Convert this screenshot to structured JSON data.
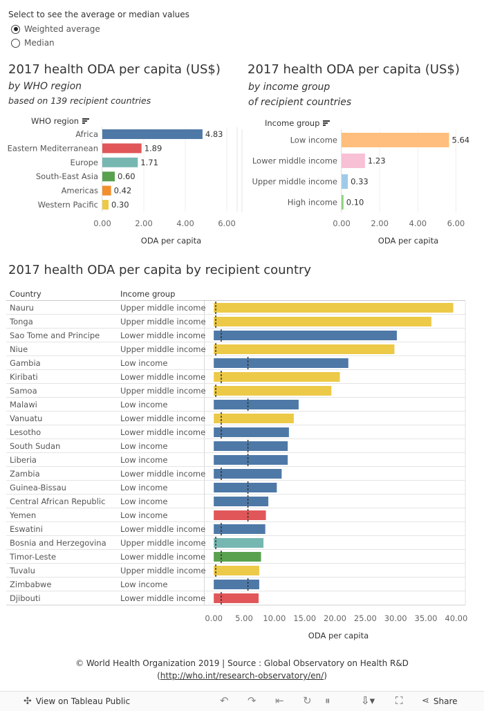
{
  "controls": {
    "title": "Select to see the average or median values",
    "options": [
      {
        "label": "Weighted average",
        "selected": true
      },
      {
        "label": "Median",
        "selected": false
      }
    ]
  },
  "chart_data": [
    {
      "type": "bar",
      "orientation": "horizontal",
      "title": "2017 health ODA per capita (US$)",
      "subtitle": "by WHO region",
      "subtitle2": "based on 139 recipient countries",
      "column_header": "WHO region",
      "xlabel": "ODA per capita",
      "xlim": [
        0,
        6.5
      ],
      "xticks": [
        "0.00",
        "2.00",
        "4.00",
        "6.00"
      ],
      "categories": [
        "Africa",
        "Eastern Mediterranean",
        "Europe",
        "South-East Asia",
        "Americas",
        "Western Pacific"
      ],
      "values": [
        4.83,
        1.89,
        1.71,
        0.6,
        0.42,
        0.3
      ],
      "labels": [
        "4.83",
        "1.89",
        "1.71",
        "0.60",
        "0.42",
        "0.30"
      ],
      "colors": [
        "#4e79a7",
        "#e15759",
        "#76b7b2",
        "#59a14f",
        "#f28e2b",
        "#edc948"
      ]
    },
    {
      "type": "bar",
      "orientation": "horizontal",
      "title": "2017 health ODA per capita (US$)",
      "subtitle": "by income group",
      "subtitle2": "of recipient countries",
      "column_header": "Income group",
      "xlabel": "ODA per capita",
      "xlim": [
        0,
        7.0
      ],
      "xticks": [
        "0.00",
        "2.00",
        "4.00",
        "6.00"
      ],
      "categories": [
        "Low income",
        "Lower middle income",
        "Upper middle income",
        "High income"
      ],
      "values": [
        5.64,
        1.23,
        0.33,
        0.1
      ],
      "labels": [
        "5.64",
        "1.23",
        "0.33",
        "0.10"
      ],
      "colors": [
        "#ffbe7d",
        "#f8c0d4",
        "#a0cbe8",
        "#8cd17d"
      ]
    },
    {
      "type": "bar",
      "orientation": "horizontal",
      "title": "2017 health ODA per capita by recipient country",
      "column_headers": [
        "Country",
        "Income group"
      ],
      "xlabel": "ODA per capita",
      "xlim": [
        -1.5,
        41.5
      ],
      "xticks": [
        "0.00",
        "5.00",
        "10.00",
        "15.00",
        "20.00",
        "25.00",
        "30.00",
        "35.00",
        "40.00"
      ],
      "rows": [
        {
          "country": "Nauru",
          "income": "Upper middle income",
          "value": 39.5,
          "color": "#edc948",
          "ref": 0.33
        },
        {
          "country": "Tonga",
          "income": "Upper middle income",
          "value": 35.9,
          "color": "#edc948",
          "ref": 0.33
        },
        {
          "country": "Sao Tome and Principe",
          "income": "Lower middle income",
          "value": 30.2,
          "color": "#4e79a7",
          "ref": 1.23
        },
        {
          "country": "Niue",
          "income": "Upper middle income",
          "value": 29.8,
          "color": "#edc948",
          "ref": 0.33
        },
        {
          "country": "Gambia",
          "income": "Low income",
          "value": 22.2,
          "color": "#4e79a7",
          "ref": 5.64
        },
        {
          "country": "Kiribati",
          "income": "Lower middle income",
          "value": 20.8,
          "color": "#edc948",
          "ref": 1.23
        },
        {
          "country": "Samoa",
          "income": "Upper middle income",
          "value": 19.4,
          "color": "#edc948",
          "ref": 0.33
        },
        {
          "country": "Malawi",
          "income": "Low income",
          "value": 14.0,
          "color": "#4e79a7",
          "ref": 5.64
        },
        {
          "country": "Vanuatu",
          "income": "Lower middle income",
          "value": 13.2,
          "color": "#edc948",
          "ref": 1.23
        },
        {
          "country": "Lesotho",
          "income": "Lower middle income",
          "value": 12.4,
          "color": "#4e79a7",
          "ref": 1.23
        },
        {
          "country": "South Sudan",
          "income": "Low income",
          "value": 12.2,
          "color": "#4e79a7",
          "ref": 5.64
        },
        {
          "country": "Liberia",
          "income": "Low income",
          "value": 12.2,
          "color": "#4e79a7",
          "ref": 5.64
        },
        {
          "country": "Zambia",
          "income": "Lower middle income",
          "value": 11.2,
          "color": "#4e79a7",
          "ref": 1.23
        },
        {
          "country": "Guinea-Bissau",
          "income": "Low income",
          "value": 10.4,
          "color": "#4e79a7",
          "ref": 5.64
        },
        {
          "country": "Central African Republic",
          "income": "Low income",
          "value": 9.0,
          "color": "#4e79a7",
          "ref": 5.64
        },
        {
          "country": "Yemen",
          "income": "Low income",
          "value": 8.6,
          "color": "#e15759",
          "ref": 5.64
        },
        {
          "country": "Eswatini",
          "income": "Lower middle income",
          "value": 8.5,
          "color": "#4e79a7",
          "ref": 1.23
        },
        {
          "country": "Bosnia and Herzegovina",
          "income": "Upper middle income",
          "value": 8.2,
          "color": "#76b7b2",
          "ref": 0.33
        },
        {
          "country": "Timor-Leste",
          "income": "Lower middle income",
          "value": 7.8,
          "color": "#59a14f",
          "ref": 1.23
        },
        {
          "country": "Tuvalu",
          "income": "Upper middle income",
          "value": 7.5,
          "color": "#edc948",
          "ref": 0.33
        },
        {
          "country": "Zimbabwe",
          "income": "Low income",
          "value": 7.5,
          "color": "#4e79a7",
          "ref": 5.64
        },
        {
          "country": "Djibouti",
          "income": "Lower middle income",
          "value": 7.4,
          "color": "#e15759",
          "ref": 1.23
        }
      ]
    }
  ],
  "footer": {
    "line1": "© World Health Organization 2019 | Source : Global Observatory on Health R&D",
    "link": "http://who.int/research-observatory/en/"
  },
  "toolbar": {
    "view_label": "View on Tableau Public",
    "share_label": "Share",
    "icons": [
      "tableau-icon",
      "undo-icon",
      "redo-icon",
      "revert-icon",
      "refresh-icon",
      "pause-icon",
      "download-icon",
      "fullscreen-icon",
      "share-icon"
    ]
  }
}
